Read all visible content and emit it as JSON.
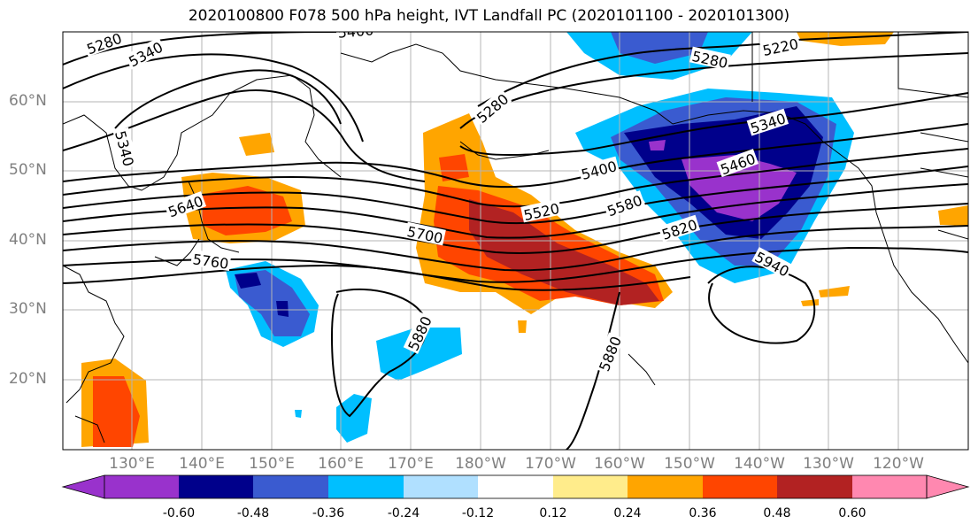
{
  "title": "2020100800 F078 500 hPa height, IVT Landfall PC (2020101100 - 2020101300)",
  "lat_labels": [
    "60°N",
    "50°N",
    "40°N",
    "30°N",
    "20°N"
  ],
  "lon_labels": [
    "130°E",
    "140°E",
    "150°E",
    "160°E",
    "170°E",
    "180°W",
    "170°W",
    "160°W",
    "150°W",
    "140°W",
    "130°W",
    "120°W"
  ],
  "contour_labels": [
    "5280",
    "5340",
    "5400",
    "5340",
    "5280",
    "5220",
    "5280",
    "5400",
    "5460",
    "5340",
    "5520",
    "5580",
    "5640",
    "5700",
    "5760",
    "5820",
    "5940",
    "5880",
    "5880"
  ],
  "colorbar": {
    "tick_labels": [
      "-0.60",
      "-0.48",
      "-0.36",
      "-0.24",
      "-0.12",
      "0.12",
      "0.24",
      "0.36",
      "0.48",
      "0.60"
    ],
    "colors": [
      "#9932cc",
      "#00008b",
      "#3a5bd0",
      "#00bfff",
      "#b0e0ff",
      "#ffffff",
      "#ffec8b",
      "#ffa500",
      "#ff4500",
      "#b22222",
      "#ff88b0"
    ]
  },
  "colors": {
    "grid": "#b4b4b4",
    "contour": "#000000",
    "coast": "#000000",
    "label": "#808080"
  }
}
